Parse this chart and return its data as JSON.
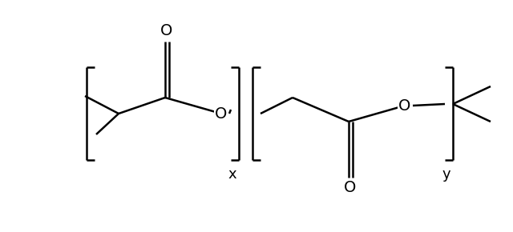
{
  "background_color": "#ffffff",
  "line_color": "#000000",
  "line_width": 1.8,
  "figsize": [
    6.4,
    2.9
  ],
  "dpi": 100,
  "xlim": [
    0,
    640
  ],
  "ylim": [
    0,
    290
  ]
}
